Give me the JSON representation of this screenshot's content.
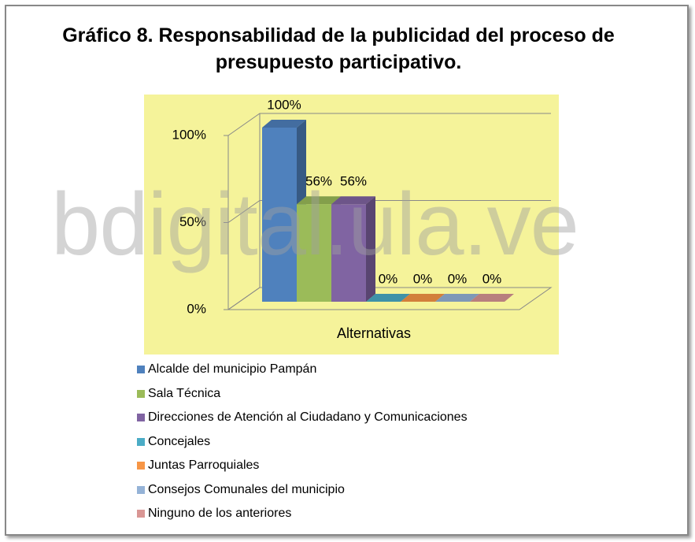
{
  "chart_data": {
    "type": "bar3d",
    "title": "Gráfico 8. Responsabilidad de la publicidad del proceso de presupuesto participativo.",
    "categories": [
      "Alternativas"
    ],
    "series": [
      {
        "name": "Alcalde del municipio Pampán",
        "color": "#4f81bd",
        "values": [
          100
        ],
        "value_labels": [
          "100%"
        ]
      },
      {
        "name": "Sala Técnica",
        "color": "#9bbb59",
        "values": [
          56
        ],
        "value_labels": [
          "56%"
        ]
      },
      {
        "name": "Direcciones de Atención al Ciudadano y  Comunicaciones",
        "color": "#8064a2",
        "values": [
          56
        ],
        "value_labels": [
          "56%"
        ]
      },
      {
        "name": "Concejales",
        "color": "#4bacc6",
        "values": [
          0
        ],
        "value_labels": [
          "0%"
        ]
      },
      {
        "name": "Juntas Parroquiales",
        "color": "#f79646",
        "values": [
          0
        ],
        "value_labels": [
          "0%"
        ]
      },
      {
        "name": "Consejos Comunales del municipio",
        "color": "#95b3d7",
        "values": [
          0
        ],
        "value_labels": [
          "0%"
        ]
      },
      {
        "name": "Ninguno de los anteriores",
        "color": "#d99694",
        "values": [
          0
        ],
        "value_labels": [
          "0%"
        ]
      }
    ],
    "ylim": [
      0,
      100
    ],
    "yticks": [
      {
        "value": 0,
        "label": "0%"
      },
      {
        "value": 50,
        "label": "50%"
      },
      {
        "value": 100,
        "label": "100%"
      }
    ],
    "grid": true,
    "plot_background": "#f5f39a",
    "watermark": "bdigital.ula.ve"
  }
}
